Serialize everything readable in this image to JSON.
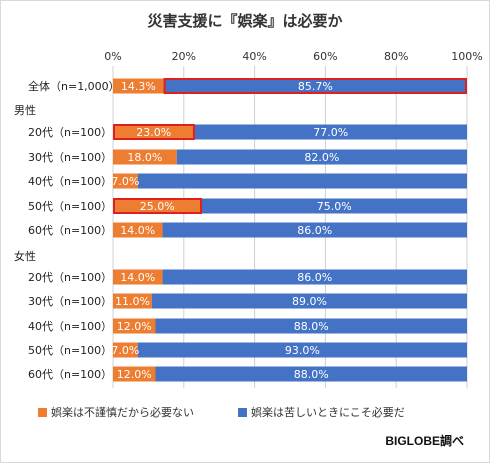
{
  "colors": {
    "unnecessary": "#ED7D31",
    "necessary": "#4472C4",
    "highlight": "#E02020",
    "grid": "#d0d0d0"
  },
  "legend": {
    "unnecessary": "娯楽は不謹慎だから必要ない",
    "necessary": "娯楽は苦しいときにこそ必要だ"
  },
  "credit": "BIGLOBE調べ",
  "chart_data": {
    "type": "bar",
    "orientation": "horizontal",
    "stacked": true,
    "title": "災害支援に『娯楽』は必要か",
    "xlim": [
      0,
      100
    ],
    "x_ticks": [
      "0%",
      "20%",
      "40%",
      "60%",
      "80%",
      "100%"
    ],
    "groups": [
      "男性",
      "女性"
    ],
    "categories": [
      {
        "label": "全体（n=1,000）",
        "group": "",
        "highlight": true
      },
      {
        "label": "20代（n=100）",
        "group": "男性",
        "highlight": true
      },
      {
        "label": "30代（n=100）",
        "group": "男性",
        "highlight": false
      },
      {
        "label": "40代（n=100）",
        "group": "男性",
        "highlight": false
      },
      {
        "label": "50代（n=100）",
        "group": "男性",
        "highlight": true
      },
      {
        "label": "60代（n=100）",
        "group": "男性",
        "highlight": false
      },
      {
        "label": "20代（n=100）",
        "group": "女性",
        "highlight": false
      },
      {
        "label": "30代（n=100）",
        "group": "女性",
        "highlight": false
      },
      {
        "label": "40代（n=100）",
        "group": "女性",
        "highlight": false
      },
      {
        "label": "50代（n=100）",
        "group": "女性",
        "highlight": false
      },
      {
        "label": "60代（n=100）",
        "group": "女性",
        "highlight": false
      }
    ],
    "series": [
      {
        "name": "娯楽は不謹慎だから必要ない",
        "values": [
          14.3,
          23.0,
          18.0,
          7.0,
          25.0,
          14.0,
          14.0,
          11.0,
          12.0,
          7.0,
          12.0
        ],
        "labels": [
          "14.3%",
          "23.0%",
          "18.0%",
          "7.0%",
          "25.0%",
          "14.0%",
          "14.0%",
          "11.0%",
          "12.0%",
          "7.0%",
          "12.0%"
        ],
        "highlight_labels": [
          false,
          true,
          false,
          false,
          true,
          false,
          false,
          false,
          false,
          false,
          false
        ]
      },
      {
        "name": "娯楽は苦しいときにこそ必要だ",
        "values": [
          85.7,
          77.0,
          82.0,
          93.0,
          75.0,
          86.0,
          86.0,
          89.0,
          88.0,
          93.0,
          88.0
        ],
        "labels": [
          "85.7%",
          "77.0%",
          "82.0%",
          "",
          "75.0%",
          "86.0%",
          "86.0%",
          "89.0%",
          "88.0%",
          "93.0%",
          "88.0%"
        ],
        "highlight_labels": [
          true,
          false,
          false,
          false,
          false,
          false,
          false,
          false,
          false,
          false,
          false
        ]
      }
    ]
  }
}
